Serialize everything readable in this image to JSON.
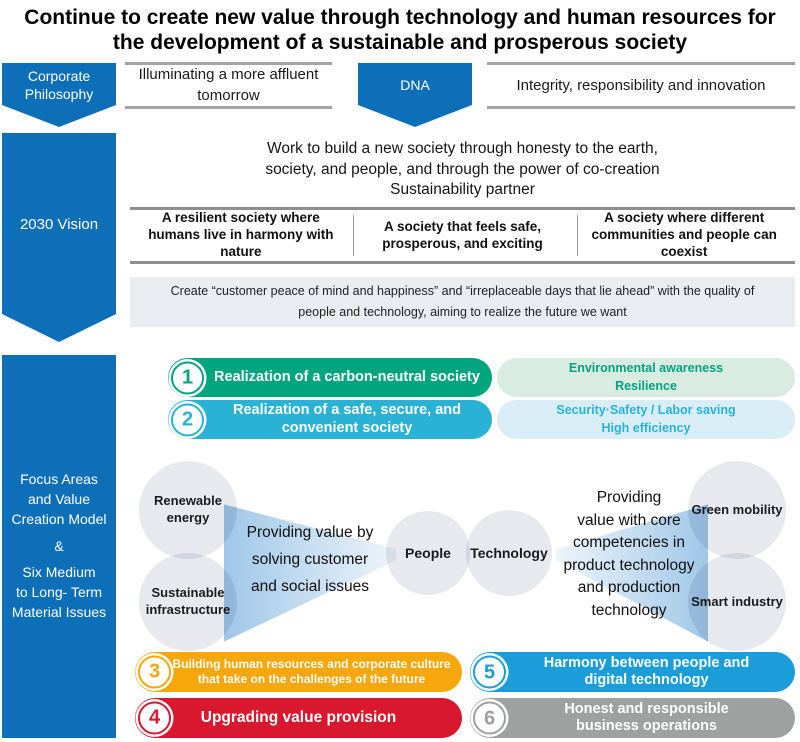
{
  "title": {
    "lines": [
      "Continue to create new value through technology and human resources for",
      "the development of a sustainable and prosperous society"
    ]
  },
  "philosophy": {
    "label": "Corporate Philosophy",
    "slogan": "Illuminating a more affluent tomorrow",
    "dna": {
      "label": "DNA",
      "values": "Integrity, responsibility and innovation"
    }
  },
  "vision": {
    "label": "2030 Vision",
    "statement_lines": [
      "Work to build a new society through honesty to the earth,",
      "society, and people, and through the power of co-creation",
      "Sustainability partner"
    ],
    "pillars": [
      "A resilient society where humans live in harmony with nature",
      "A society that feels safe, prosperous, and exciting",
      "A society where different communities and people can coexist"
    ],
    "mission": "Create “customer peace of mind and happiness” and “irreplaceable days that lie ahead” with the quality of people and technology, aiming to realize the future we want"
  },
  "focus": {
    "label_lines": [
      "Focus Areas",
      "and Value",
      "Creation Model",
      "&",
      "Six Medium",
      "to Long- Term",
      "Material Issues"
    ]
  },
  "issues": [
    {
      "num": "1",
      "label": "Realization of a carbon-neutral society",
      "color": "#00a47e",
      "tags": [
        "Environmental awareness",
        "Resilience"
      ],
      "tag_bg": "#d9ece1"
    },
    {
      "num": "2",
      "label": "Realization of a safe, secure, and convenient society",
      "color": "#29b2d6",
      "tags": [
        "Security·Safety / Labor saving",
        "High efficiency"
      ],
      "tag_bg": "#d8edf6"
    },
    {
      "num": "3",
      "label": "Building human resources and corporate culture that take on the challenges of the future",
      "color": "#f6a70c"
    },
    {
      "num": "4",
      "label": "Upgrading value provision",
      "color": "#d7182f"
    },
    {
      "num": "5",
      "label": "Harmony between people and digital technology",
      "color": "#1b9dd9"
    },
    {
      "num": "6",
      "label": "Honest and responsible business operations",
      "color": "#9fa0a0"
    }
  ],
  "value_model": {
    "left_circles": [
      "Renewable energy",
      "Sustainable infrastructure"
    ],
    "left_funnel_lines": [
      "Providing value by",
      "solving customer",
      "and social issues"
    ],
    "core_circles": [
      "People",
      "Technology"
    ],
    "right_funnel_lines": [
      "Providing",
      "value with core",
      "competencies in",
      "product technology",
      "and production",
      "technology"
    ],
    "right_circles": [
      "Green mobility",
      "Smart industry"
    ]
  },
  "colors": {
    "banner_blue": "#0d6fb8",
    "funnel_blue": "#9fc7e8",
    "circle_gray": "#e7e9ee",
    "mission_bg": "#e9edf1",
    "rule_gray": "#8e8e8e"
  }
}
